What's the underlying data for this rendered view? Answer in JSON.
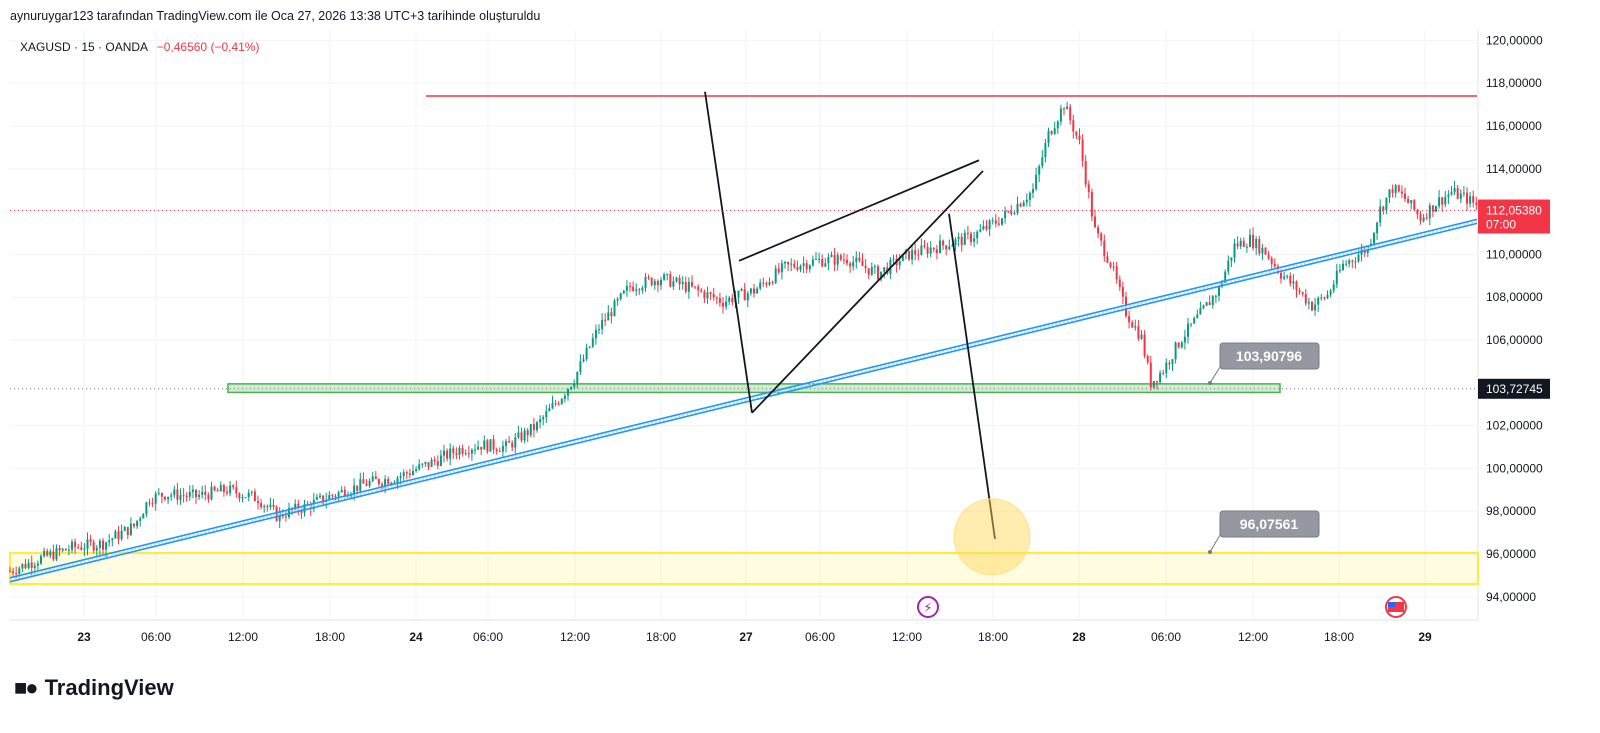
{
  "caption": "aynuruygar123 tarafından TradingView.com ile Oca 27, 2026 13:38 UTC+3 tarihinde oluşturuldu",
  "legend": {
    "symbol": "XAGUSD · 15 · OANDA",
    "change": "−0,46560 (−0,41%)"
  },
  "logo": "TradingView",
  "colors": {
    "up": "#089981",
    "down": "#f23645",
    "resistance": "#f23645",
    "trend": "#2196f3",
    "support_zone": "#4caf50",
    "target_zone": "#ffeb3b"
  },
  "chart_data": {
    "type": "candlestick",
    "y_axis": {
      "min": 93,
      "max": 120.5,
      "ticks": [
        "120,00000",
        "118,00000",
        "116,00000",
        "114,00000",
        "110,00000",
        "108,00000",
        "106,00000",
        "102,00000",
        "100,00000",
        "98,00000",
        "96,00000",
        "94,00000"
      ]
    },
    "x_axis": {
      "ticks": [
        {
          "label": "23",
          "bold": true
        },
        {
          "label": "06:00"
        },
        {
          "label": "12:00"
        },
        {
          "label": "18:00"
        },
        {
          "label": "24",
          "bold": true
        },
        {
          "label": "06:00"
        },
        {
          "label": "12:00"
        },
        {
          "label": "18:00"
        },
        {
          "label": "27",
          "bold": true
        },
        {
          "label": "06:00"
        },
        {
          "label": "12:00"
        },
        {
          "label": "18:00"
        },
        {
          "label": "28",
          "bold": true
        },
        {
          "label": "06:00"
        },
        {
          "label": "12:00"
        },
        {
          "label": "18:00"
        },
        {
          "label": "29",
          "bold": true
        }
      ]
    },
    "current_price": {
      "value": "112,05380",
      "countdown": "07:00"
    },
    "level_label": "103,72745",
    "callouts": [
      "103,90796",
      "96,07561"
    ],
    "price_path": [
      [
        0,
        95.2
      ],
      [
        10,
        95.8
      ],
      [
        20,
        96.3
      ],
      [
        30,
        96.5
      ],
      [
        40,
        97.3
      ],
      [
        45,
        98.6
      ],
      [
        50,
        98.8
      ],
      [
        60,
        98.7
      ],
      [
        70,
        99.0
      ],
      [
        80,
        98.6
      ],
      [
        86,
        97.8
      ],
      [
        95,
        98.2
      ],
      [
        105,
        98.8
      ],
      [
        115,
        99.3
      ],
      [
        125,
        99.6
      ],
      [
        135,
        100.2
      ],
      [
        145,
        100.9
      ],
      [
        152,
        101.1
      ],
      [
        160,
        101.0
      ],
      [
        170,
        102.0
      ],
      [
        178,
        103.4
      ],
      [
        182,
        104.2
      ],
      [
        190,
        106.6
      ],
      [
        200,
        108.5
      ],
      [
        210,
        108.9
      ],
      [
        220,
        108.4
      ],
      [
        230,
        107.8
      ],
      [
        240,
        108.3
      ],
      [
        250,
        109.4
      ],
      [
        260,
        109.7
      ],
      [
        270,
        109.8
      ],
      [
        280,
        109.1
      ],
      [
        290,
        110.0
      ],
      [
        300,
        110.4
      ],
      [
        310,
        110.8
      ],
      [
        320,
        111.7
      ],
      [
        330,
        113.0
      ],
      [
        335,
        115.6
      ],
      [
        340,
        117.0
      ],
      [
        345,
        115.2
      ],
      [
        350,
        111.1
      ],
      [
        355,
        109.6
      ],
      [
        360,
        107.3
      ],
      [
        365,
        106.1
      ],
      [
        368,
        104.0
      ],
      [
        372,
        104.6
      ],
      [
        378,
        106.1
      ],
      [
        385,
        107.4
      ],
      [
        390,
        108.4
      ],
      [
        395,
        110.4
      ],
      [
        400,
        110.7
      ],
      [
        405,
        110.1
      ],
      [
        410,
        109.1
      ],
      [
        415,
        108.4
      ],
      [
        420,
        107.6
      ],
      [
        425,
        108.1
      ],
      [
        430,
        109.5
      ],
      [
        438,
        110.3
      ],
      [
        442,
        112.1
      ],
      [
        446,
        113.1
      ],
      [
        450,
        112.6
      ],
      [
        455,
        111.7
      ],
      [
        460,
        112.4
      ],
      [
        465,
        112.9
      ],
      [
        470,
        112.6
      ],
      [
        474,
        112.2
      ]
    ]
  }
}
